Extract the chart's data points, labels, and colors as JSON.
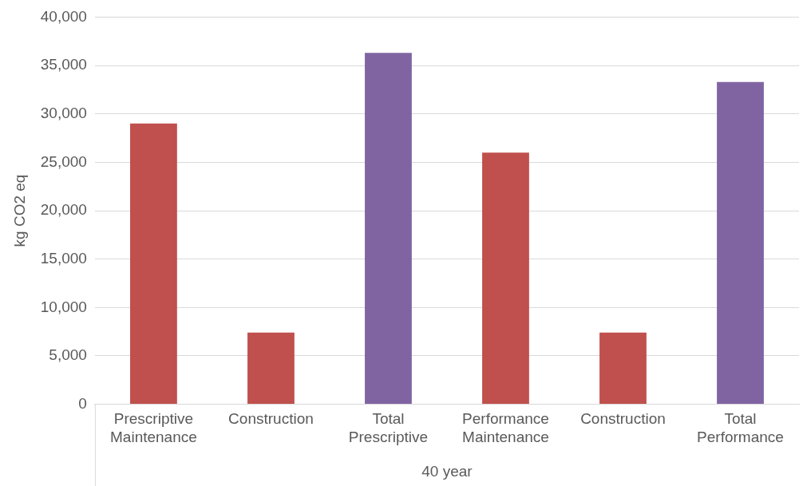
{
  "chart_data": {
    "type": "bar",
    "ylabel": "kg CO2 eq",
    "xlabel": "40 year",
    "categories": [
      "Prescriptive Maintenance",
      "Construction",
      "Total Prescriptive",
      "Performance Maintenance",
      "Construction",
      "Total Performance"
    ],
    "values": [
      29000,
      7400,
      36300,
      26000,
      7400,
      33300
    ],
    "colors": [
      "#c0504d",
      "#c0504d",
      "#8064a2",
      "#c0504d",
      "#c0504d",
      "#8064a2"
    ],
    "ylim": [
      0,
      40000
    ],
    "yticks": [
      0,
      {
        "value": 5000,
        "label": "5,000"
      },
      {
        "value": 10000,
        "label": "10,000"
      },
      {
        "value": 15000,
        "label": "15,000"
      },
      {
        "value": 20000,
        "label": "20,000"
      },
      {
        "value": 25000,
        "label": "25,000"
      },
      {
        "value": 30000,
        "label": "30,000"
      },
      {
        "value": 35000,
        "label": "35,000"
      },
      {
        "value": 40000,
        "label": "40,000"
      }
    ],
    "grid": "y",
    "legend": false
  }
}
